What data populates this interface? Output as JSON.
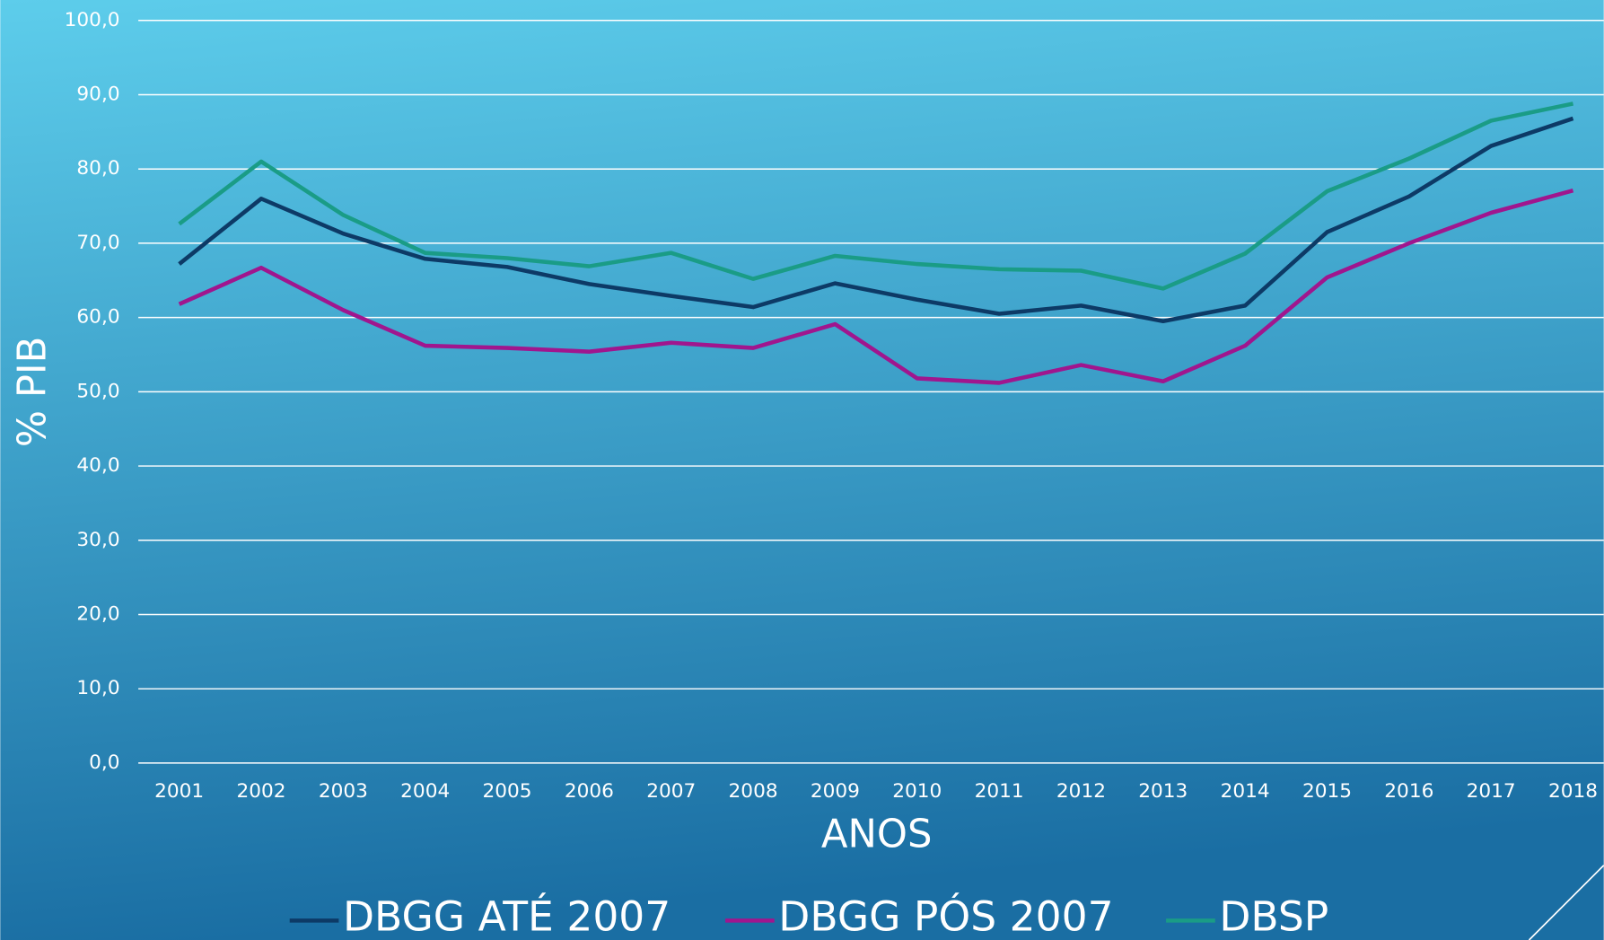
{
  "chart_data": {
    "type": "line",
    "y_label": "% PIB",
    "x_label": "ANOS",
    "categories": [
      "2001",
      "2002",
      "2003",
      "2004",
      "2005",
      "2006",
      "2007",
      "2008",
      "2009",
      "2010",
      "2011",
      "2012",
      "2013",
      "2014",
      "2015",
      "2016",
      "2017",
      "2018"
    ],
    "series": [
      {
        "name": "DBGG ATÉ 2007",
        "color": "#0d3a66",
        "values": [
          67.2,
          76.0,
          71.3,
          67.9,
          66.8,
          64.5,
          62.9,
          61.4,
          64.6,
          62.4,
          60.5,
          61.6,
          59.5,
          61.6,
          71.5,
          76.3,
          83.1,
          86.8
        ]
      },
      {
        "name": "DBGG PÓS 2007",
        "color": "#a0168e",
        "values": [
          61.8,
          66.7,
          61.0,
          56.2,
          55.9,
          55.4,
          56.6,
          55.9,
          59.1,
          51.8,
          51.2,
          53.6,
          51.4,
          56.2,
          65.4,
          70.0,
          74.1,
          77.1
        ]
      },
      {
        "name": "DBSP",
        "color": "#1a9c86",
        "values": [
          72.6,
          81.0,
          73.8,
          68.7,
          68.0,
          66.9,
          68.7,
          65.2,
          68.3,
          67.2,
          66.5,
          66.3,
          63.9,
          68.6,
          77.0,
          81.4,
          86.5,
          88.8
        ]
      }
    ],
    "ylim": [
      0,
      100
    ],
    "yticks": [
      {
        "value": 0,
        "label": "0,0"
      },
      {
        "value": 10,
        "label": "10,0"
      },
      {
        "value": 20,
        "label": "20,0"
      },
      {
        "value": 30,
        "label": "30,0"
      },
      {
        "value": 40,
        "label": "40,0"
      },
      {
        "value": 50,
        "label": "50,0"
      },
      {
        "value": 60,
        "label": "60,0"
      },
      {
        "value": 70,
        "label": "70,0"
      },
      {
        "value": 80,
        "label": "80,0"
      },
      {
        "value": 90,
        "label": "90,0"
      },
      {
        "value": 100,
        "label": "100,0"
      }
    ],
    "grid": true
  }
}
